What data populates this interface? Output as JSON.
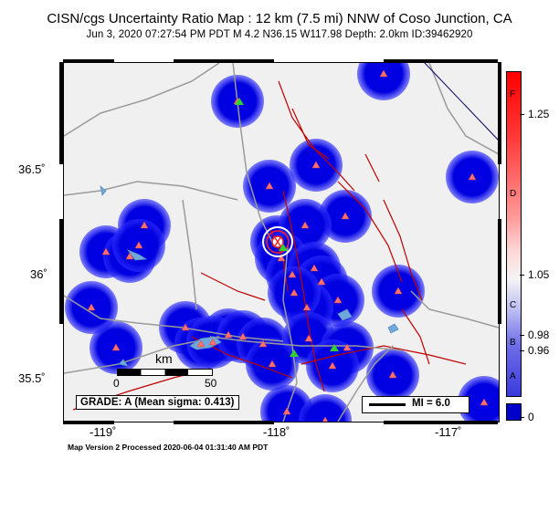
{
  "header": {
    "title": "CISN/cgs Uncertainty Ratio Map : 12 km (7.5 mi) NNW of Coso Junction, CA",
    "subtitle": "Jun  3, 2020 07:27:54 PM PDT   M 4.2   N36.15 W117.98   Depth: 2.0km   ID:39462920"
  },
  "axes": {
    "x_ticks": [
      "-119˚",
      "-118˚",
      "-117˚"
    ],
    "y_ticks": [
      "36.5˚",
      "36˚",
      "35.5˚"
    ]
  },
  "map": {
    "scale_label": "km",
    "scale_start": "0",
    "scale_end": "50",
    "grade_text": "GRADE: A (Mean sigma: 0.413)",
    "mi_text": "MI = 6.0",
    "colors": {
      "land": "#f0f0f0",
      "station_halo": "#0000e0",
      "station": "#ff6060",
      "faults": "#c00000",
      "roads": "#9a9a9a",
      "water": "#6fa8dc"
    }
  },
  "colorbar": {
    "letters": [
      "F",
      "D",
      "C",
      "B",
      "A"
    ],
    "values": [
      "1.25",
      "1.05",
      "0.98",
      "0.96",
      "0"
    ]
  },
  "footer": {
    "text": "Map Version 2 Processed 2020-06-04 01:31:40 AM PDT"
  }
}
